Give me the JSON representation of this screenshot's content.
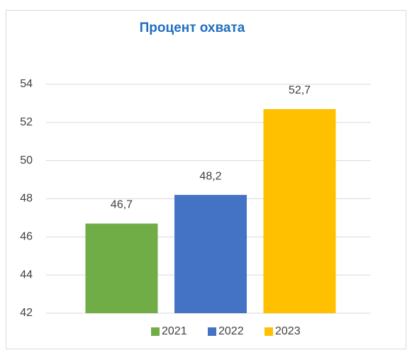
{
  "chart_data": {
    "type": "bar",
    "title": "Процент охвата",
    "categories": [
      null
    ],
    "series": [
      {
        "name": "2021",
        "color": "#70ad47",
        "values": [
          46.7
        ],
        "value_labels": [
          "46,7"
        ]
      },
      {
        "name": "2022",
        "color": "#4472c4",
        "values": [
          48.2
        ],
        "value_labels": [
          "48,2"
        ]
      },
      {
        "name": "2023",
        "color": "#ffc000",
        "values": [
          52.7
        ],
        "value_labels": [
          "52,7"
        ]
      }
    ],
    "ylim": [
      42,
      54
    ],
    "yticks": [
      42,
      44,
      46,
      48,
      50,
      52,
      54
    ],
    "grid": true,
    "legend": "bottom"
  }
}
